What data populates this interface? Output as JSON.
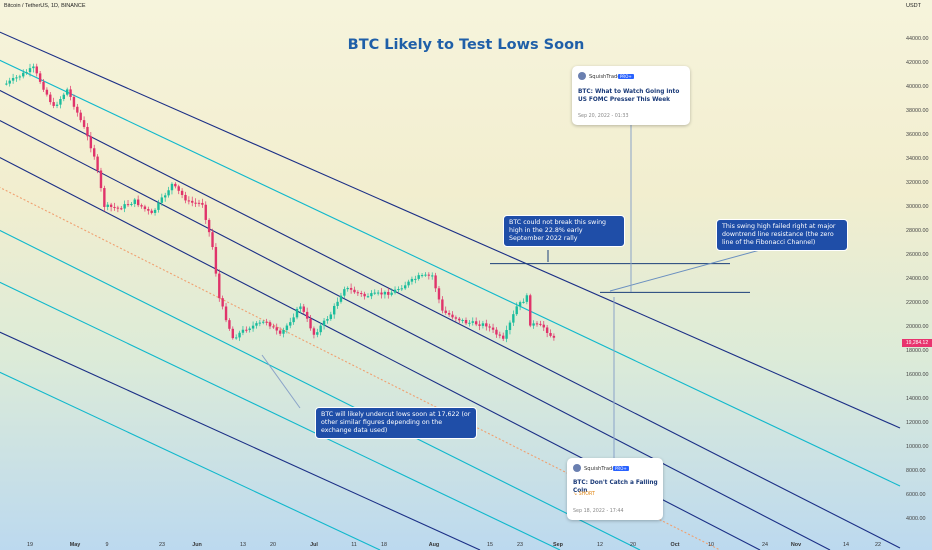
{
  "header": {
    "symbol": "Bitcoin / TetherUS, 1D, BINANCE",
    "currency": "USDT",
    "title": "BTC Likely to Test Lows Soon",
    "current_price": "19,284.12"
  },
  "notes": {
    "swing_high": "BTC could not break this swing high in the 22.8% early September 2022 rally",
    "resistance": "This swing high failed right at major downtrend line resistance (the zero line of the Fibonacci Channel)",
    "undercut": "BTC will likely undercut lows soon at 17,622 (or other similar figures depending on the exchange data used)"
  },
  "ideas": [
    {
      "author": "SquishTrade",
      "badge": "PRO+",
      "title": "BTC: What to Watch Going into US FOMC Presser This Week",
      "date": "Sep 20, 2022 - 01:33"
    },
    {
      "author": "SquishTrade",
      "badge": "PRO+",
      "title": "BTC: Don't Catch a Falling Coin",
      "tag": "SHORT",
      "date": "Sep 18, 2022 - 17:44"
    }
  ],
  "colors": {
    "up": "#1abc9c",
    "down": "#e0336a",
    "channel_navy": "#1b2f86",
    "channel_cyan": "#10b8cc",
    "channel_orange": "#f0a070",
    "note_bg": "#1f4ea8",
    "title": "#1f5fa8"
  },
  "chart_data": {
    "type": "candlestick",
    "title": "BTC Likely to Test Lows Soon",
    "y_axis_ticks": [
      4000,
      6000,
      8000,
      10000,
      12000,
      14000,
      16000,
      18000,
      20000,
      22000,
      24000,
      26000,
      28000,
      30000,
      32000,
      34000,
      36000,
      38000,
      40000,
      42000,
      44000
    ],
    "y_axis_labels": [
      "4000.00",
      "6000.00",
      "8000.00",
      "10000.00",
      "12000.00",
      "14000.00",
      "16000.00",
      "18000.00",
      "20000.00",
      "22000.00",
      "24000.00",
      "26000.00",
      "28000.00",
      "30000.00",
      "32000.00",
      "34000.00",
      "36000.00",
      "38000.00",
      "40000.00",
      "42000.00",
      "44000.00"
    ],
    "x_axis_labels": [
      "19",
      "May",
      "9",
      "23",
      "Jun",
      "13",
      "20",
      "Jul",
      "11",
      "18",
      "Aug",
      "15",
      "23",
      "Sep",
      "12",
      "20",
      "Oct",
      "10",
      "24",
      "Nov",
      "14",
      "22"
    ],
    "price_points": [
      [
        "2022-04-12",
        40200
      ],
      [
        "2022-04-20",
        41500
      ],
      [
        "2022-04-26",
        38200
      ],
      [
        "2022-04-30",
        39700
      ],
      [
        "2022-05-05",
        36500
      ],
      [
        "2022-05-08",
        34200
      ],
      [
        "2022-05-11",
        30000
      ],
      [
        "2022-05-15",
        29800
      ],
      [
        "2022-05-20",
        30400
      ],
      [
        "2022-05-25",
        29300
      ],
      [
        "2022-05-31",
        31800
      ],
      [
        "2022-06-05",
        30300
      ],
      [
        "2022-06-09",
        30200
      ],
      [
        "2022-06-12",
        26600
      ],
      [
        "2022-06-14",
        22300
      ],
      [
        "2022-06-18",
        19000
      ],
      [
        "2022-06-22",
        19800
      ],
      [
        "2022-06-28",
        20400
      ],
      [
        "2022-07-02",
        19200
      ],
      [
        "2022-07-08",
        21700
      ],
      [
        "2022-07-12",
        19300
      ],
      [
        "2022-07-17",
        21000
      ],
      [
        "2022-07-21",
        23200
      ],
      [
        "2022-07-27",
        22500
      ],
      [
        "2022-08-04",
        22800
      ],
      [
        "2022-08-12",
        24100
      ],
      [
        "2022-08-16",
        24200
      ],
      [
        "2022-08-19",
        21200
      ],
      [
        "2022-08-26",
        20300
      ],
      [
        "2022-09-01",
        20100
      ],
      [
        "2022-09-06",
        18800
      ],
      [
        "2022-09-10",
        21600
      ],
      [
        "2022-09-13",
        22400
      ],
      [
        "2022-09-14",
        20200
      ],
      [
        "2022-09-18",
        19900
      ],
      [
        "2022-09-21",
        18900
      ]
    ],
    "annotated_levels": [
      {
        "label": "swing high",
        "value": 25200
      },
      {
        "label": "resistance",
        "value": 22800
      },
      {
        "label": "lows",
        "value": 17622
      }
    ],
    "grid": false,
    "channel": "fibonacci"
  }
}
